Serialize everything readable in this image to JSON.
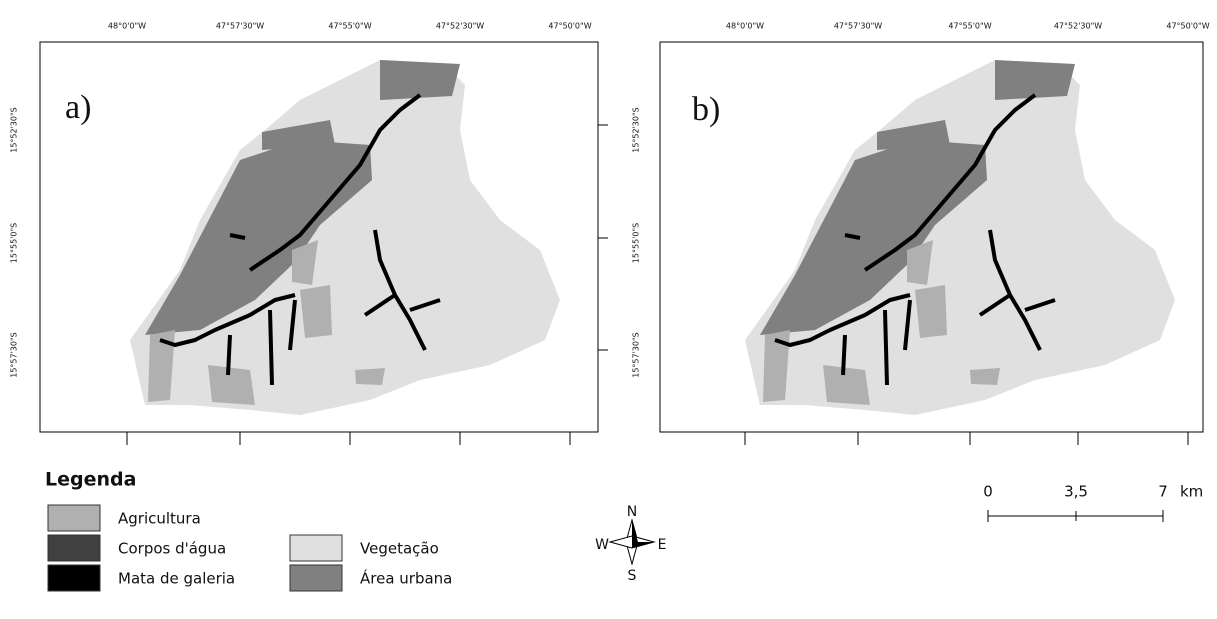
{
  "panels": [
    {
      "label": "a)"
    },
    {
      "label": "b)"
    }
  ],
  "longitude_labels": [
    "48°0'0\"W",
    "47°57'30\"W",
    "47°55'0\"W",
    "47°52'30\"W",
    "47°50'0\"W"
  ],
  "latitude_labels": [
    "15°52'30\"S",
    "15°55'0\"S",
    "15°57'30\"S"
  ],
  "legend": {
    "title": "Legenda",
    "items": [
      "Agricultura",
      "Corpos d'água",
      "Mata de galeria",
      "Vegetação",
      "Área urbana"
    ]
  },
  "compass": {
    "north": "N",
    "south": "S",
    "west": "W",
    "east": "E"
  },
  "scale_bar": {
    "labels": [
      "0",
      "3,5",
      "7"
    ],
    "unit": "km"
  }
}
